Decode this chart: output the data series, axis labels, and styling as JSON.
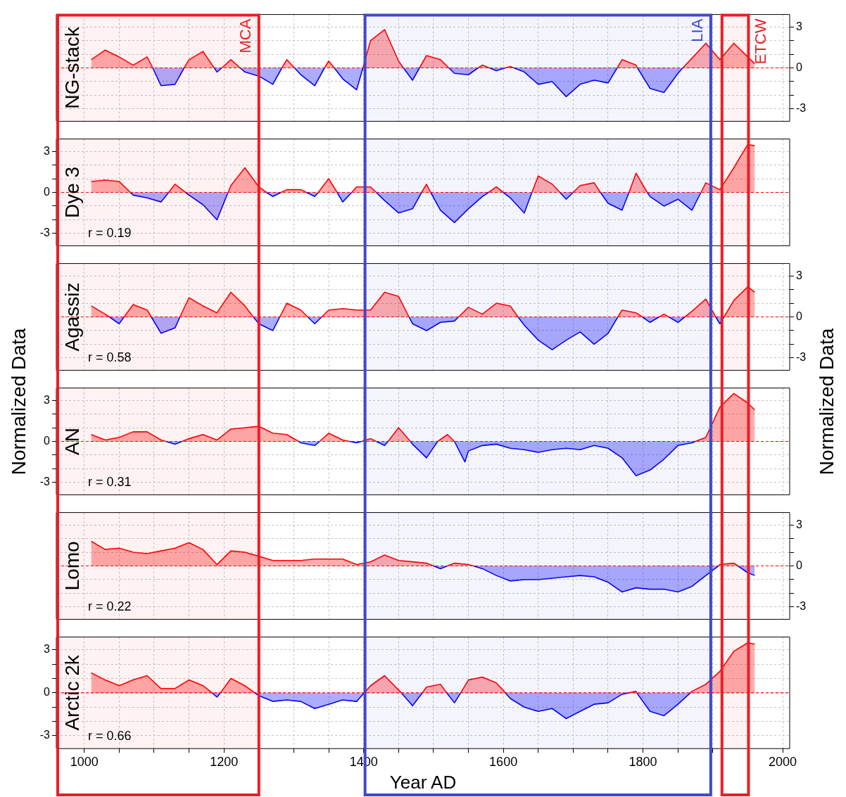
{
  "chart_data": [
    {
      "type": "area",
      "title": "NG-stack",
      "y2label": "Normalized Data",
      "grid": true,
      "tick_labels": "y",
      "x": [
        1010,
        1030,
        1050,
        1070,
        1090,
        1098,
        1110,
        1130,
        1143,
        1150,
        1170,
        1186,
        1190,
        1197,
        1210,
        1223,
        1230,
        1250,
        1270,
        1283,
        1290,
        1301,
        1310,
        1330,
        1344,
        1350,
        1358,
        1370,
        1390,
        1399,
        1410,
        1430,
        1450,
        1457,
        1470,
        1480,
        1490,
        1510,
        1522,
        1530,
        1550,
        1564,
        1570,
        1580,
        1590,
        1603,
        1610,
        1615,
        1630,
        1650,
        1670,
        1690,
        1710,
        1730,
        1750,
        1763,
        1770,
        1790,
        1792,
        1810,
        1830,
        1850,
        1857,
        1870,
        1890,
        1910,
        1930,
        1950,
        1960
      ],
      "series": [
        {
          "color": "#ff0000",
          "axis": "y2",
          "values": [
            0.6,
            1.3,
            0.8,
            0.2,
            0.8,
            0,
            null,
            null,
            0,
            0.6,
            1.2,
            0,
            null,
            0,
            0.6,
            0,
            null,
            null,
            null,
            0,
            0.6,
            0,
            null,
            null,
            0,
            0.5,
            0,
            null,
            null,
            0,
            2.0,
            2.8,
            0.5,
            0,
            null,
            0,
            0.9,
            0.6,
            0,
            null,
            null,
            0,
            0.2,
            0,
            null,
            0,
            0.1,
            0,
            null,
            null,
            null,
            null,
            null,
            null,
            null,
            0,
            0.6,
            0.2,
            0,
            null,
            null,
            null,
            0,
            0.7,
            1.8,
            0.6,
            1.8,
            0.8,
            0.3
          ]
        },
        {
          "color": "#0000ff",
          "axis": "y2",
          "values": [
            null,
            null,
            null,
            null,
            null,
            0,
            -1.3,
            -1.2,
            0,
            null,
            null,
            0,
            -0.3,
            0,
            null,
            0,
            -0.3,
            -0.6,
            -1.2,
            0,
            null,
            0,
            -0.5,
            -1.3,
            0,
            null,
            0,
            -0.8,
            -1.6,
            0,
            null,
            null,
            null,
            0,
            -0.9,
            0,
            null,
            null,
            0,
            -0.4,
            -0.5,
            0,
            null,
            0,
            -0.2,
            0,
            null,
            0,
            -0.3,
            -1.2,
            -1.0,
            -2.1,
            -1.2,
            -0.9,
            -1.1,
            0,
            null,
            null,
            0,
            -1.5,
            -1.8,
            -0.4,
            0,
            null,
            null,
            null,
            null,
            null,
            null
          ]
        }
      ],
      "xlim": [
        960,
        2010
      ],
      "xticks": [
        1000,
        {
          "value": 1050,
          "label": null
        },
        {
          "value": 1100,
          "label": null
        },
        {
          "value": 1150,
          "label": null
        },
        1200,
        {
          "value": 1250,
          "label": null
        },
        {
          "value": 1300,
          "label": null
        },
        {
          "value": 1350,
          "label": null
        },
        1400,
        {
          "value": 1450,
          "label": null
        },
        {
          "value": 1500,
          "label": null
        },
        {
          "value": 1550,
          "label": null
        },
        1600,
        {
          "value": 1650,
          "label": null
        },
        {
          "value": 1700,
          "label": null
        },
        {
          "value": 1750,
          "label": null
        },
        1800,
        {
          "value": 1850,
          "label": null
        },
        {
          "value": 1900,
          "label": null
        },
        {
          "value": 1950,
          "label": null
        },
        2000
      ],
      "y2lim": [
        -3.9,
        3.9
      ],
      "y2ticks": [
        -3,
        {
          "value": -2,
          "label": null
        },
        {
          "value": -1,
          "label": null
        },
        0,
        {
          "value": 1,
          "label": null
        },
        {
          "value": 2,
          "label": null
        },
        3
      ],
      "ref_lines": [
        {
          "axis": "y2",
          "value": 0,
          "color": "#ff0000",
          "line_style": "dashed"
        }
      ],
      "bands": [
        {
          "axis": "x",
          "from": 960,
          "to": 1250,
          "label": "MCA",
          "color": "#ee1c25"
        },
        {
          "axis": "x",
          "from": 1400,
          "to": 1897,
          "label": "LIA",
          "color": "#3f48cc"
        },
        {
          "axis": "x",
          "from": 1911,
          "to": 1951,
          "label": "ETCW",
          "color": "#ee1c25"
        }
      ]
    },
    {
      "type": "area",
      "title": "Dye 3",
      "ylabel": "Normalized Data",
      "grid": true,
      "tick_labels": "y",
      "annotations": [
        "r = 0.19"
      ],
      "x": [
        1010,
        1030,
        1050,
        1066,
        1070,
        1090,
        1110,
        1121,
        1130,
        1145,
        1150,
        1170,
        1190,
        1206,
        1210,
        1230,
        1250,
        1261,
        1270,
        1282,
        1290,
        1310,
        1318,
        1330,
        1335,
        1350,
        1362,
        1370,
        1383,
        1390,
        1410,
        1418,
        1430,
        1450,
        1470,
        1483,
        1490,
        1496,
        1510,
        1530,
        1550,
        1570,
        1579,
        1590,
        1600,
        1610,
        1630,
        1641,
        1650,
        1670,
        1681,
        1690,
        1700,
        1710,
        1730,
        1739,
        1750,
        1770,
        1780,
        1790,
        1806,
        1810,
        1830,
        1850,
        1870,
        1883,
        1890,
        1910,
        1930,
        1950,
        1960
      ],
      "series": [
        {
          "color": "#ff0000",
          "values": [
            0.8,
            0.9,
            0.8,
            0,
            null,
            null,
            null,
            0,
            0.6,
            0,
            null,
            null,
            null,
            0,
            0.5,
            1.8,
            0.4,
            0,
            null,
            0,
            0.2,
            0.2,
            0,
            null,
            0,
            1.0,
            0,
            null,
            0,
            0.4,
            0.4,
            0,
            null,
            null,
            null,
            0,
            0.6,
            0,
            null,
            null,
            null,
            null,
            0,
            0.4,
            0,
            null,
            null,
            0,
            1.2,
            0.6,
            0,
            null,
            0,
            0.5,
            0.7,
            0,
            null,
            null,
            0,
            1.4,
            0,
            null,
            null,
            null,
            null,
            0,
            0.7,
            0.2,
            1.8,
            3.5,
            3.4
          ]
        },
        {
          "color": "#0000ff",
          "values": [
            null,
            null,
            null,
            0,
            -0.2,
            -0.4,
            -0.7,
            0,
            null,
            0,
            -0.2,
            -0.9,
            -2.0,
            0,
            null,
            null,
            null,
            0,
            -0.3,
            0,
            null,
            null,
            0,
            -0.3,
            0,
            null,
            0,
            -0.7,
            0,
            null,
            null,
            0,
            -0.6,
            -1.5,
            -1.2,
            0,
            null,
            0,
            -1.3,
            -2.2,
            -1.2,
            -0.3,
            0,
            null,
            0,
            -0.4,
            -1.5,
            0,
            null,
            null,
            0,
            -0.5,
            0,
            null,
            null,
            0,
            -0.8,
            -1.3,
            0,
            null,
            0,
            -0.3,
            -1.0,
            -0.5,
            -1.3,
            0,
            null,
            null,
            null,
            null,
            null
          ]
        }
      ],
      "xlim": [
        960,
        2010
      ],
      "xticks": [
        1000,
        {
          "value": 1050,
          "label": null
        },
        {
          "value": 1100,
          "label": null
        },
        {
          "value": 1150,
          "label": null
        },
        1200,
        {
          "value": 1250,
          "label": null
        },
        {
          "value": 1300,
          "label": null
        },
        {
          "value": 1350,
          "label": null
        },
        1400,
        {
          "value": 1450,
          "label": null
        },
        {
          "value": 1500,
          "label": null
        },
        {
          "value": 1550,
          "label": null
        },
        1600,
        {
          "value": 1650,
          "label": null
        },
        {
          "value": 1700,
          "label": null
        },
        {
          "value": 1750,
          "label": null
        },
        1800,
        {
          "value": 1850,
          "label": null
        },
        {
          "value": 1900,
          "label": null
        },
        {
          "value": 1950,
          "label": null
        },
        2000
      ],
      "ylim": [
        -3.9,
        3.9
      ],
      "yticks": [
        -3,
        {
          "value": -2,
          "label": null
        },
        {
          "value": -1,
          "label": null
        },
        0,
        {
          "value": 1,
          "label": null
        },
        {
          "value": 2,
          "label": null
        },
        3
      ],
      "ref_lines": [
        {
          "axis": "y",
          "value": 0,
          "color": "#ff0000",
          "line_style": "dashed"
        }
      ],
      "bands": [
        {
          "axis": "x",
          "from": 960,
          "to": 1250,
          "color": "#ee1c25"
        },
        {
          "axis": "x",
          "from": 1400,
          "to": 1897,
          "color": "#3f48cc"
        },
        {
          "axis": "x",
          "from": 1911,
          "to": 1951,
          "color": "#ee1c25"
        }
      ]
    },
    {
      "type": "area",
      "title": "Agassiz",
      "grid": true,
      "tick_labels": "y",
      "annotations": [
        "r = 0.58"
      ],
      "x": [
        1010,
        1030,
        1036,
        1050,
        1057,
        1070,
        1090,
        1096,
        1110,
        1130,
        1137,
        1150,
        1170,
        1190,
        1210,
        1230,
        1242,
        1250,
        1270,
        1280,
        1290,
        1310,
        1320,
        1330,
        1340,
        1350,
        1370,
        1390,
        1410,
        1430,
        1450,
        1465,
        1470,
        1490,
        1510,
        1530,
        1536,
        1550,
        1570,
        1590,
        1610,
        1621,
        1630,
        1650,
        1670,
        1690,
        1710,
        1730,
        1750,
        1764,
        1770,
        1790,
        1799,
        1810,
        1823,
        1830,
        1837,
        1850,
        1860,
        1870,
        1890,
        1904,
        1910,
        1916,
        1930,
        1950,
        1960
      ],
      "series": [
        {
          "color": "#ff0000",
          "axis": "y2",
          "values": [
            0.8,
            0.2,
            0,
            null,
            0,
            0.9,
            0.5,
            0,
            null,
            null,
            0,
            1.4,
            0.8,
            0.3,
            1.8,
            0.8,
            0,
            null,
            null,
            0,
            1.0,
            0.5,
            0,
            null,
            0,
            0.5,
            0.6,
            0.5,
            0.5,
            1.8,
            1.5,
            0,
            null,
            null,
            null,
            null,
            0,
            0.7,
            0.2,
            1.0,
            0.8,
            0,
            null,
            null,
            null,
            null,
            null,
            null,
            null,
            0,
            0.5,
            0.3,
            0,
            null,
            0,
            0.2,
            0,
            null,
            0,
            0.4,
            1.3,
            0,
            null,
            0,
            1.2,
            2.2,
            1.8
          ]
        },
        {
          "color": "#0000ff",
          "axis": "y2",
          "values": [
            null,
            null,
            0,
            -0.5,
            0,
            null,
            null,
            0,
            -1.2,
            -0.8,
            0,
            null,
            null,
            null,
            null,
            null,
            0,
            -0.5,
            -1.0,
            0,
            null,
            null,
            0,
            -0.5,
            0,
            null,
            null,
            null,
            null,
            null,
            null,
            0,
            -0.5,
            -1.0,
            -0.4,
            -0.3,
            0,
            null,
            null,
            null,
            null,
            0,
            -0.6,
            -1.7,
            -2.4,
            -1.7,
            -1.1,
            -2.0,
            -1.2,
            0,
            null,
            null,
            0,
            -0.4,
            0,
            null,
            0,
            -0.4,
            0,
            null,
            null,
            0,
            -0.5,
            0,
            null,
            null,
            null
          ]
        }
      ],
      "xlim": [
        960,
        2010
      ],
      "xticks": [
        1000,
        {
          "value": 1050,
          "label": null
        },
        {
          "value": 1100,
          "label": null
        },
        {
          "value": 1150,
          "label": null
        },
        1200,
        {
          "value": 1250,
          "label": null
        },
        {
          "value": 1300,
          "label": null
        },
        {
          "value": 1350,
          "label": null
        },
        1400,
        {
          "value": 1450,
          "label": null
        },
        {
          "value": 1500,
          "label": null
        },
        {
          "value": 1550,
          "label": null
        },
        1600,
        {
          "value": 1650,
          "label": null
        },
        {
          "value": 1700,
          "label": null
        },
        {
          "value": 1750,
          "label": null
        },
        1800,
        {
          "value": 1850,
          "label": null
        },
        {
          "value": 1900,
          "label": null
        },
        {
          "value": 1950,
          "label": null
        },
        2000
      ],
      "y2lim": [
        -3.9,
        3.9
      ],
      "y2ticks": [
        -3,
        {
          "value": -2,
          "label": null
        },
        {
          "value": -1,
          "label": null
        },
        0,
        {
          "value": 1,
          "label": null
        },
        {
          "value": 2,
          "label": null
        },
        3
      ],
      "ref_lines": [
        {
          "axis": "y2",
          "value": 0,
          "color": "#ff0000",
          "line_style": "dashed"
        }
      ],
      "bands": [
        {
          "axis": "x",
          "from": 960,
          "to": 1250,
          "color": "#ee1c25"
        },
        {
          "axis": "x",
          "from": 1400,
          "to": 1897,
          "color": "#3f48cc"
        },
        {
          "axis": "x",
          "from": 1911,
          "to": 1951,
          "color": "#ee1c25"
        }
      ]
    },
    {
      "type": "area",
      "title": "AN",
      "grid": true,
      "tick_labels": "y",
      "annotations": [
        "r = 0.31"
      ],
      "x": [
        1010,
        1030,
        1050,
        1070,
        1090,
        1110,
        1117,
        1130,
        1140,
        1150,
        1170,
        1190,
        1210,
        1230,
        1250,
        1270,
        1290,
        1307,
        1310,
        1330,
        1337,
        1350,
        1370,
        1380,
        1390,
        1397,
        1410,
        1418,
        1430,
        1435,
        1450,
        1467,
        1470,
        1490,
        1506,
        1520,
        1530,
        1545,
        1550,
        1570,
        1590,
        1610,
        1630,
        1650,
        1670,
        1690,
        1710,
        1730,
        1750,
        1770,
        1790,
        1810,
        1830,
        1850,
        1870,
        1875,
        1890,
        1910,
        1930,
        1950,
        1960
      ],
      "series": [
        {
          "color": "#ff0000",
          "values": [
            0.5,
            0.1,
            0.3,
            0.7,
            0.7,
            0.1,
            0,
            null,
            0,
            0.2,
            0.5,
            0.1,
            0.9,
            1.0,
            1.1,
            0.6,
            0.5,
            0,
            null,
            null,
            0,
            0.6,
            0.1,
            0,
            null,
            0,
            0.2,
            0,
            null,
            0,
            1.0,
            0,
            null,
            null,
            0,
            0.5,
            0,
            null,
            null,
            null,
            null,
            null,
            null,
            null,
            null,
            null,
            null,
            null,
            null,
            null,
            null,
            null,
            null,
            null,
            null,
            0,
            0.3,
            2.5,
            3.5,
            2.8,
            2.3
          ]
        },
        {
          "color": "#0000ff",
          "values": [
            null,
            null,
            null,
            null,
            null,
            null,
            0,
            -0.2,
            0,
            null,
            null,
            null,
            null,
            null,
            null,
            null,
            null,
            0,
            -0.1,
            -0.3,
            0,
            null,
            null,
            0,
            -0.1,
            0,
            null,
            0,
            -0.3,
            0,
            null,
            0,
            -0.2,
            -1.2,
            0,
            null,
            0,
            -1.5,
            -0.7,
            -0.3,
            -0.2,
            -0.5,
            -0.6,
            -0.8,
            -0.6,
            -0.5,
            -0.6,
            -0.3,
            -0.5,
            -1.2,
            -2.5,
            -2.1,
            -1.3,
            -0.3,
            -0.1,
            0,
            null,
            null,
            null,
            null,
            null
          ]
        }
      ],
      "xlim": [
        960,
        2010
      ],
      "xticks": [
        1000,
        {
          "value": 1050,
          "label": null
        },
        {
          "value": 1100,
          "label": null
        },
        {
          "value": 1150,
          "label": null
        },
        1200,
        {
          "value": 1250,
          "label": null
        },
        {
          "value": 1300,
          "label": null
        },
        {
          "value": 1350,
          "label": null
        },
        1400,
        {
          "value": 1450,
          "label": null
        },
        {
          "value": 1500,
          "label": null
        },
        {
          "value": 1550,
          "label": null
        },
        1600,
        {
          "value": 1650,
          "label": null
        },
        {
          "value": 1700,
          "label": null
        },
        {
          "value": 1750,
          "label": null
        },
        1800,
        {
          "value": 1850,
          "label": null
        },
        {
          "value": 1900,
          "label": null
        },
        {
          "value": 1950,
          "label": null
        },
        2000
      ],
      "ylim": [
        -3.9,
        3.9
      ],
      "yticks": [
        -3,
        {
          "value": -2,
          "label": null
        },
        {
          "value": -1,
          "label": null
        },
        0,
        {
          "value": 1,
          "label": null
        },
        {
          "value": 2,
          "label": null
        },
        3
      ],
      "ref_lines": [
        {
          "axis": "y",
          "value": 0,
          "color": "#ff0000",
          "line_style": "dashed"
        }
      ],
      "bands": [
        {
          "axis": "x",
          "from": 960,
          "to": 1250,
          "color": "#ee1c25"
        },
        {
          "axis": "x",
          "from": 1400,
          "to": 1897,
          "color": "#3f48cc"
        },
        {
          "axis": "x",
          "from": 1911,
          "to": 1951,
          "color": "#ee1c25"
        }
      ]
    },
    {
      "type": "area",
      "title": "Lomo",
      "grid": true,
      "tick_labels": "y",
      "annotations": [
        "r = 0.22"
      ],
      "x": [
        1010,
        1030,
        1050,
        1070,
        1090,
        1110,
        1130,
        1150,
        1170,
        1190,
        1210,
        1230,
        1250,
        1270,
        1290,
        1310,
        1330,
        1350,
        1370,
        1390,
        1410,
        1430,
        1450,
        1470,
        1490,
        1500,
        1510,
        1520,
        1530,
        1550,
        1557,
        1570,
        1590,
        1610,
        1630,
        1650,
        1670,
        1690,
        1710,
        1730,
        1750,
        1770,
        1790,
        1810,
        1830,
        1850,
        1870,
        1890,
        1908,
        1910,
        1930,
        1936,
        1950,
        1960
      ],
      "series": [
        {
          "color": "#ff0000",
          "axis": "y2",
          "values": [
            1.8,
            1.2,
            1.3,
            1.0,
            0.9,
            1.1,
            1.3,
            1.7,
            1.2,
            0.1,
            1.1,
            1.0,
            0.7,
            0.4,
            0.4,
            0.4,
            0.5,
            0.5,
            0.5,
            0.1,
            0.3,
            0.8,
            0.4,
            0.3,
            0.2,
            0,
            null,
            0,
            0.2,
            0.1,
            0,
            null,
            null,
            null,
            null,
            null,
            null,
            null,
            null,
            null,
            null,
            null,
            null,
            null,
            null,
            null,
            null,
            null,
            0,
            0.1,
            0.2,
            0,
            null,
            null
          ]
        },
        {
          "color": "#0000ff",
          "axis": "y2",
          "values": [
            null,
            null,
            null,
            null,
            null,
            null,
            null,
            null,
            null,
            null,
            null,
            null,
            null,
            null,
            null,
            null,
            null,
            null,
            null,
            null,
            null,
            null,
            null,
            null,
            null,
            0,
            -0.2,
            0,
            null,
            null,
            0,
            -0.2,
            -0.7,
            -1.1,
            -1.0,
            -1.0,
            -0.9,
            -0.8,
            -0.7,
            -0.8,
            -1.2,
            -1.9,
            -1.6,
            -1.7,
            -1.7,
            -1.9,
            -1.5,
            -0.7,
            0,
            null,
            null,
            0,
            -0.5,
            -0.7
          ]
        }
      ],
      "xlim": [
        960,
        2010
      ],
      "xticks": [
        1000,
        {
          "value": 1050,
          "label": null
        },
        {
          "value": 1100,
          "label": null
        },
        {
          "value": 1150,
          "label": null
        },
        1200,
        {
          "value": 1250,
          "label": null
        },
        {
          "value": 1300,
          "label": null
        },
        {
          "value": 1350,
          "label": null
        },
        1400,
        {
          "value": 1450,
          "label": null
        },
        {
          "value": 1500,
          "label": null
        },
        {
          "value": 1550,
          "label": null
        },
        1600,
        {
          "value": 1650,
          "label": null
        },
        {
          "value": 1700,
          "label": null
        },
        {
          "value": 1750,
          "label": null
        },
        1800,
        {
          "value": 1850,
          "label": null
        },
        {
          "value": 1900,
          "label": null
        },
        {
          "value": 1950,
          "label": null
        },
        2000
      ],
      "y2lim": [
        -3.9,
        3.9
      ],
      "y2ticks": [
        -3,
        {
          "value": -2,
          "label": null
        },
        {
          "value": -1,
          "label": null
        },
        0,
        {
          "value": 1,
          "label": null
        },
        {
          "value": 2,
          "label": null
        },
        3
      ],
      "ref_lines": [
        {
          "axis": "y2",
          "value": 0,
          "color": "#ff0000",
          "line_style": "dashed"
        }
      ],
      "bands": [
        {
          "axis": "x",
          "from": 960,
          "to": 1250,
          "color": "#ee1c25"
        },
        {
          "axis": "x",
          "from": 1400,
          "to": 1897,
          "color": "#3f48cc"
        },
        {
          "axis": "x",
          "from": 1911,
          "to": 1951,
          "color": "#ee1c25"
        }
      ]
    },
    {
      "type": "area",
      "title": "Arctic 2k",
      "xlabel": "Year AD",
      "grid": true,
      "annotations": [
        "r = 0.66"
      ],
      "x": [
        1010,
        1030,
        1050,
        1070,
        1090,
        1110,
        1130,
        1150,
        1170,
        1183,
        1190,
        1195,
        1210,
        1230,
        1244,
        1250,
        1270,
        1290,
        1310,
        1330,
        1350,
        1370,
        1390,
        1401,
        1410,
        1430,
        1450,
        1454,
        1470,
        1484,
        1490,
        1510,
        1519,
        1530,
        1539,
        1550,
        1570,
        1590,
        1603,
        1610,
        1630,
        1650,
        1670,
        1690,
        1710,
        1730,
        1750,
        1770,
        1780,
        1790,
        1791,
        1810,
        1830,
        1850,
        1868,
        1870,
        1890,
        1910,
        1930,
        1950,
        1960
      ],
      "series": [
        {
          "color": "#ff0000",
          "values": [
            1.4,
            0.9,
            0.5,
            0.9,
            1.2,
            0.3,
            0.3,
            0.9,
            0.5,
            0,
            null,
            0,
            1.0,
            0.5,
            0,
            null,
            null,
            null,
            null,
            null,
            null,
            null,
            null,
            0,
            0.5,
            1.2,
            0.2,
            0,
            null,
            0,
            0.4,
            0.6,
            0,
            null,
            0,
            0.9,
            1.1,
            0.7,
            0,
            null,
            null,
            null,
            null,
            null,
            null,
            null,
            null,
            null,
            0,
            0.1,
            0,
            null,
            null,
            null,
            0,
            0.1,
            0.6,
            1.5,
            2.9,
            3.5,
            3.4
          ]
        },
        {
          "color": "#0000ff",
          "values": [
            null,
            null,
            null,
            null,
            null,
            null,
            null,
            null,
            null,
            0,
            -0.3,
            0,
            null,
            null,
            0,
            -0.2,
            -0.6,
            -0.5,
            -0.6,
            -1.1,
            -0.8,
            -0.5,
            -0.6,
            0,
            null,
            null,
            null,
            0,
            -0.9,
            0,
            null,
            null,
            0,
            -0.7,
            0,
            null,
            null,
            null,
            0,
            -0.4,
            -1.0,
            -1.3,
            -1.1,
            -1.8,
            -1.3,
            -0.8,
            -0.7,
            -0.1,
            0,
            null,
            0,
            -1.3,
            -1.6,
            -0.8,
            0,
            null,
            null,
            null,
            null,
            null,
            null
          ]
        }
      ],
      "xlim": [
        960,
        2010
      ],
      "xticks": [
        1000,
        {
          "value": 1050,
          "label": null
        },
        {
          "value": 1100,
          "label": null
        },
        {
          "value": 1150,
          "label": null
        },
        1200,
        {
          "value": 1250,
          "label": null
        },
        {
          "value": 1300,
          "label": null
        },
        {
          "value": 1350,
          "label": null
        },
        1400,
        {
          "value": 1450,
          "label": null
        },
        {
          "value": 1500,
          "label": null
        },
        {
          "value": 1550,
          "label": null
        },
        1600,
        {
          "value": 1650,
          "label": null
        },
        {
          "value": 1700,
          "label": null
        },
        {
          "value": 1750,
          "label": null
        },
        1800,
        {
          "value": 1850,
          "label": null
        },
        {
          "value": 1900,
          "label": null
        },
        {
          "value": 1950,
          "label": null
        },
        2000
      ],
      "ylim": [
        -3.9,
        3.9
      ],
      "yticks": [
        -3,
        {
          "value": -2,
          "label": null
        },
        {
          "value": -1,
          "label": null
        },
        0,
        {
          "value": 1,
          "label": null
        },
        {
          "value": 2,
          "label": null
        },
        3
      ],
      "ref_lines": [
        {
          "axis": "y",
          "value": 0,
          "color": "#ff0000",
          "line_style": "dashed"
        }
      ],
      "bands": [
        {
          "axis": "x",
          "from": 960,
          "to": 1250,
          "color": "#ee1c25"
        },
        {
          "axis": "x",
          "from": 1400,
          "to": 1897,
          "color": "#3f48cc"
        },
        {
          "axis": "x",
          "from": 1911,
          "to": 1951,
          "color": "#ee1c25"
        }
      ]
    }
  ]
}
